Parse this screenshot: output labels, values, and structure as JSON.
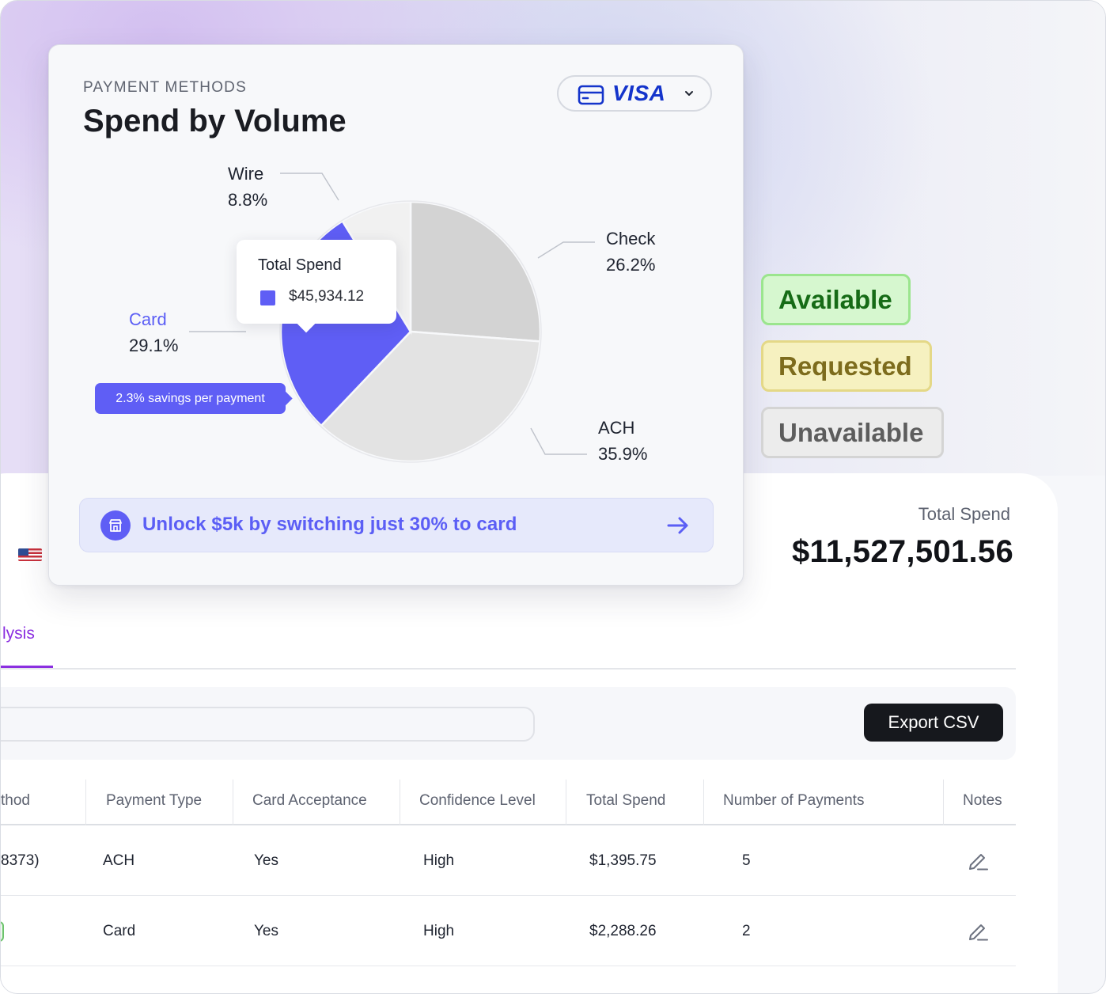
{
  "payment_methods_card": {
    "eyebrow": "PAYMENT METHODS",
    "title": "Spend by Volume",
    "card_selector": {
      "brand": "VISA",
      "icon": "credit-card-icon"
    },
    "tooltip": {
      "title": "Total Spend",
      "value": "$45,934.12"
    },
    "savings_pill": "2.3% savings per payment",
    "unlock_banner": {
      "text": "Unlock $5k by switching just 30% to card",
      "icon": "store-icon",
      "arrow": "arrow-right-icon"
    }
  },
  "chart_data": {
    "type": "pie",
    "slices": [
      {
        "label": "Check",
        "value": 26.2,
        "value_label": "26.2%",
        "color": "#d3d3d3"
      },
      {
        "label": "ACH",
        "value": 35.9,
        "value_label": "35.9%",
        "color": "#e3e3e3"
      },
      {
        "label": "Card",
        "value": 29.1,
        "value_label": "29.1%",
        "color": "#5f5ef5"
      },
      {
        "label": "Wire",
        "value": 8.8,
        "value_label": "8.8%",
        "color": "#f1f1f1"
      }
    ]
  },
  "status_badges": [
    {
      "label": "Available",
      "color": "#166b16"
    },
    {
      "label": "Requested",
      "color": "#7d6c1d"
    },
    {
      "label": "Unavailable",
      "color": "#5d5d5d"
    }
  ],
  "summary": {
    "total_label": "Total Spend",
    "total_value": "$11,527,501.56"
  },
  "tabs": {
    "active_label": "lysis"
  },
  "toolbar": {
    "export_label": "Export CSV"
  },
  "table": {
    "headers": [
      "thod",
      "Payment Type",
      "Card Acceptance",
      "Confidence Level",
      "Total Spend",
      "Number of Payments",
      "Notes"
    ],
    "rows": [
      {
        "method": "8373)",
        "type": "ACH",
        "acceptance": "Yes",
        "confidence": "High",
        "spend": "$1,395.75",
        "count": "5"
      },
      {
        "method": "",
        "type": "Card",
        "acceptance": "Yes",
        "confidence": "High",
        "spend": "$2,288.26",
        "count": "2"
      }
    ]
  },
  "colors": {
    "accent": "#5f5ef5",
    "tab_active": "#8b2fe0"
  }
}
